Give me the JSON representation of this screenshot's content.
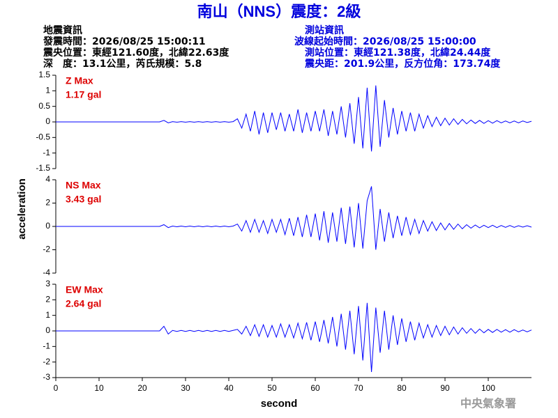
{
  "title": "南山（NNS）震度：2級",
  "event_info": [
    "地震資訊",
    "發震時間：2026/08/25 15:00:11",
    "震央位置：東經121.60度，北緯22.63度",
    "深　度：13.1公里，芮氏規模：5.8"
  ],
  "station_info": [
    "測站資訊",
    "波線起始時間：2026/08/25 15:00:00",
    "測站位置：東經121.38度，北緯24.44度",
    "震央距：201.9公里，反方位角：173.74度"
  ],
  "footer": "中央氣象署",
  "ylabel": "acceleration",
  "xlabel": "second",
  "chart_data": [
    {
      "type": "line",
      "annotations": [
        "Z Max",
        "1.17 gal"
      ],
      "color": "#0000ff",
      "xlim": [
        0,
        110
      ],
      "ylim": [
        -1.5,
        1.5
      ],
      "yticks": [
        -1.5,
        -1,
        -0.5,
        0,
        0.5,
        1,
        1.5
      ],
      "x": [
        0,
        1,
        2,
        3,
        4,
        5,
        6,
        7,
        8,
        9,
        10,
        11,
        12,
        13,
        14,
        15,
        16,
        17,
        18,
        19,
        20,
        21,
        22,
        23,
        24,
        25,
        26,
        27,
        28,
        29,
        30,
        31,
        32,
        33,
        34,
        35,
        36,
        37,
        38,
        39,
        40,
        41,
        42,
        43,
        44,
        45,
        46,
        47,
        48,
        49,
        50,
        51,
        52,
        53,
        54,
        55,
        56,
        57,
        58,
        59,
        60,
        61,
        62,
        63,
        64,
        65,
        66,
        67,
        68,
        69,
        70,
        71,
        72,
        73,
        74,
        75,
        76,
        77,
        78,
        79,
        80,
        81,
        82,
        83,
        84,
        85,
        86,
        87,
        88,
        89,
        90,
        91,
        92,
        93,
        94,
        95,
        96,
        97,
        98,
        99,
        100,
        101,
        102,
        103,
        104,
        105,
        106,
        107,
        108,
        109,
        110
      ],
      "values": [
        0,
        0,
        0,
        0,
        0,
        0,
        0,
        0,
        0,
        0,
        0,
        0,
        0,
        0,
        0,
        0,
        0,
        0,
        0,
        0,
        0,
        0,
        0,
        0,
        0,
        0.05,
        -0.03,
        0.01,
        -0.01,
        0.01,
        -0.01,
        0.01,
        -0.01,
        0.01,
        -0.01,
        0.01,
        -0.01,
        0.01,
        -0.01,
        0.01,
        -0.01,
        0.01,
        0.1,
        -0.2,
        0.25,
        -0.3,
        0.35,
        -0.4,
        0.3,
        -0.35,
        0.3,
        -0.25,
        0.3,
        -0.3,
        0.25,
        -0.3,
        0.4,
        -0.35,
        0.3,
        -0.3,
        0.35,
        -0.3,
        0.4,
        -0.45,
        0.35,
        -0.4,
        0.5,
        -0.5,
        0.6,
        -0.7,
        0.8,
        -0.85,
        1.1,
        -0.95,
        1.17,
        -0.8,
        0.7,
        -0.5,
        0.45,
        -0.4,
        0.35,
        -0.3,
        0.3,
        -0.3,
        0.25,
        -0.2,
        0.2,
        -0.15,
        0.15,
        -0.12,
        0.12,
        -0.1,
        0.1,
        -0.08,
        0.08,
        -0.06,
        0.06,
        -0.05,
        0.05,
        -0.05,
        0.04,
        -0.04,
        0.04,
        -0.03,
        0.03,
        -0.03,
        0.03,
        -0.03,
        0.03,
        -0.02,
        0.02
      ]
    },
    {
      "type": "line",
      "annotations": [
        "NS Max",
        "3.43 gal"
      ],
      "color": "#0000ff",
      "xlim": [
        0,
        110
      ],
      "ylim": [
        -4,
        4
      ],
      "yticks": [
        -4,
        -2,
        0,
        2,
        4
      ],
      "x": [
        0,
        1,
        2,
        3,
        4,
        5,
        6,
        7,
        8,
        9,
        10,
        11,
        12,
        13,
        14,
        15,
        16,
        17,
        18,
        19,
        20,
        21,
        22,
        23,
        24,
        25,
        26,
        27,
        28,
        29,
        30,
        31,
        32,
        33,
        34,
        35,
        36,
        37,
        38,
        39,
        40,
        41,
        42,
        43,
        44,
        45,
        46,
        47,
        48,
        49,
        50,
        51,
        52,
        53,
        54,
        55,
        56,
        57,
        58,
        59,
        60,
        61,
        62,
        63,
        64,
        65,
        66,
        67,
        68,
        69,
        70,
        71,
        72,
        73,
        74,
        75,
        76,
        77,
        78,
        79,
        80,
        81,
        82,
        83,
        84,
        85,
        86,
        87,
        88,
        89,
        90,
        91,
        92,
        93,
        94,
        95,
        96,
        97,
        98,
        99,
        100,
        101,
        102,
        103,
        104,
        105,
        106,
        107,
        108,
        109,
        110
      ],
      "values": [
        0,
        0,
        0,
        0,
        0,
        0,
        0,
        0,
        0,
        0,
        0,
        0,
        0,
        0,
        0,
        0,
        0,
        0,
        0,
        0,
        0,
        0,
        0,
        0,
        0,
        0.15,
        -0.1,
        0.03,
        -0.03,
        0.03,
        -0.03,
        0.03,
        -0.03,
        0.03,
        -0.03,
        0.03,
        -0.03,
        0.03,
        -0.03,
        0.03,
        -0.03,
        0.03,
        0.2,
        -0.4,
        0.5,
        -0.5,
        0.6,
        -0.5,
        0.5,
        -0.6,
        0.6,
        -0.5,
        0.6,
        -0.7,
        0.7,
        -0.8,
        0.8,
        -0.9,
        1,
        -0.9,
        1.1,
        -1.2,
        1.3,
        -1.4,
        1.2,
        -1.3,
        1.6,
        -1.5,
        1.7,
        -1.8,
        2,
        -1.9,
        2.2,
        3.43,
        -2,
        1.5,
        -1.3,
        1.2,
        -1,
        0.9,
        -0.8,
        0.8,
        -0.7,
        0.6,
        -0.6,
        0.5,
        -0.4,
        0.4,
        -0.35,
        0.3,
        -0.3,
        0.25,
        -0.25,
        0.2,
        -0.2,
        0.15,
        -0.15,
        0.12,
        -0.12,
        0.1,
        -0.1,
        0.1,
        -0.1,
        0.08,
        -0.08,
        0.08,
        -0.08,
        0.06,
        -0.06,
        0.06,
        -0.06
      ]
    },
    {
      "type": "line",
      "annotations": [
        "EW Max",
        "2.64 gal"
      ],
      "color": "#0000ff",
      "xlim": [
        0,
        110
      ],
      "ylim": [
        -3,
        3
      ],
      "yticks": [
        -3,
        -2,
        -1,
        0,
        1,
        2,
        3
      ],
      "xticks": [
        0,
        10,
        20,
        30,
        40,
        50,
        60,
        70,
        80,
        90,
        100
      ],
      "x": [
        0,
        1,
        2,
        3,
        4,
        5,
        6,
        7,
        8,
        9,
        10,
        11,
        12,
        13,
        14,
        15,
        16,
        17,
        18,
        19,
        20,
        21,
        22,
        23,
        24,
        25,
        26,
        27,
        28,
        29,
        30,
        31,
        32,
        33,
        34,
        35,
        36,
        37,
        38,
        39,
        40,
        41,
        42,
        43,
        44,
        45,
        46,
        47,
        48,
        49,
        50,
        51,
        52,
        53,
        54,
        55,
        56,
        57,
        58,
        59,
        60,
        61,
        62,
        63,
        64,
        65,
        66,
        67,
        68,
        69,
        70,
        71,
        72,
        73,
        74,
        75,
        76,
        77,
        78,
        79,
        80,
        81,
        82,
        83,
        84,
        85,
        86,
        87,
        88,
        89,
        90,
        91,
        92,
        93,
        94,
        95,
        96,
        97,
        98,
        99,
        100,
        101,
        102,
        103,
        104,
        105,
        106,
        107,
        108,
        109,
        110
      ],
      "values": [
        0,
        0,
        0,
        0,
        0,
        0,
        0,
        0,
        0,
        0,
        0,
        0,
        0,
        0,
        0,
        0,
        0,
        0,
        0,
        0,
        0,
        0,
        0,
        0,
        0,
        0.3,
        -0.2,
        0.03,
        -0.03,
        0.03,
        -0.03,
        0.03,
        -0.03,
        0.03,
        -0.03,
        0.03,
        -0.03,
        0.03,
        -0.03,
        0.03,
        -0.03,
        0.03,
        0.1,
        -0.2,
        0.3,
        -0.3,
        0.4,
        -0.35,
        0.4,
        -0.4,
        0.35,
        -0.4,
        0.45,
        -0.4,
        0.4,
        -0.45,
        0.5,
        -0.5,
        0.55,
        -0.6,
        0.6,
        -0.7,
        0.7,
        -0.8,
        0.9,
        -1,
        1.1,
        -1.2,
        1.3,
        -1.5,
        1.6,
        -1.9,
        1.8,
        -2.64,
        1.5,
        -1.4,
        1.3,
        -1.2,
        1,
        -0.9,
        0.8,
        -0.7,
        0.6,
        -0.6,
        0.5,
        -0.45,
        0.4,
        -0.4,
        0.35,
        -0.3,
        0.3,
        -0.25,
        0.25,
        -0.2,
        0.2,
        -0.15,
        0.15,
        -0.15,
        0.12,
        -0.12,
        0.1,
        -0.1,
        0.1,
        -0.08,
        0.08,
        -0.08,
        0.08,
        -0.06,
        0.06,
        -0.06,
        0.06
      ]
    }
  ]
}
